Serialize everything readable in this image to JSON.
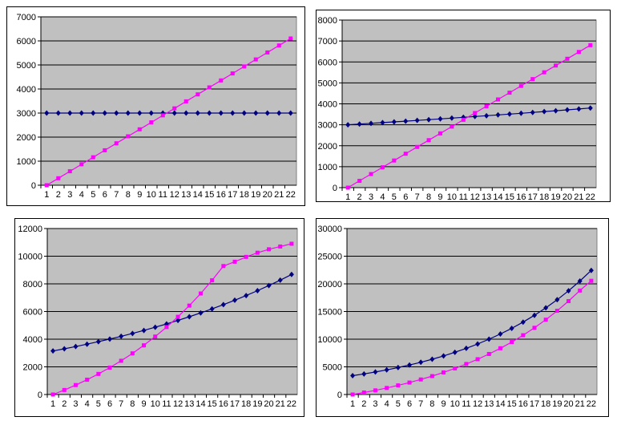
{
  "colors": {
    "plot_bg": "#c0c0c0",
    "series_a": "#000080",
    "series_b": "#ff00ff",
    "grid": "#000000"
  },
  "chart_data": [
    {
      "type": "line",
      "x": [
        1,
        2,
        3,
        4,
        5,
        6,
        7,
        8,
        9,
        10,
        11,
        12,
        13,
        14,
        15,
        16,
        17,
        18,
        19,
        20,
        21,
        22
      ],
      "ylim": [
        0,
        7000
      ],
      "yticks": [
        0,
        1000,
        2000,
        3000,
        4000,
        5000,
        6000,
        7000
      ],
      "grid": true,
      "series": [
        {
          "color": "#000080",
          "marker": "diamond",
          "values": [
            3000,
            3000,
            3000,
            3000,
            3000,
            3000,
            3000,
            3000,
            3000,
            3000,
            3000,
            3000,
            3000,
            3000,
            3000,
            3000,
            3000,
            3000,
            3000,
            3000,
            3000,
            3000
          ]
        },
        {
          "color": "#ff00ff",
          "marker": "square",
          "values": [
            0,
            290,
            581,
            871,
            1162,
            1452,
            1743,
            2033,
            2324,
            2614,
            2905,
            3195,
            3486,
            3776,
            4067,
            4357,
            4648,
            4938,
            5229,
            5519,
            5810,
            6100
          ]
        }
      ]
    },
    {
      "type": "line",
      "x": [
        1,
        2,
        3,
        4,
        5,
        6,
        7,
        8,
        9,
        10,
        11,
        12,
        13,
        14,
        15,
        16,
        17,
        18,
        19,
        20,
        21,
        22
      ],
      "ylim": [
        0,
        8000
      ],
      "yticks": [
        0,
        1000,
        2000,
        3000,
        4000,
        5000,
        6000,
        7000,
        8000
      ],
      "grid": true,
      "series": [
        {
          "color": "#000080",
          "marker": "diamond",
          "values": [
            3000,
            3034,
            3068,
            3103,
            3138,
            3173,
            3209,
            3245,
            3282,
            3319,
            3357,
            3395,
            3433,
            3472,
            3511,
            3550,
            3590,
            3631,
            3672,
            3713,
            3755,
            3800
          ]
        },
        {
          "color": "#ff00ff",
          "marker": "square",
          "values": [
            0,
            324,
            648,
            971,
            1295,
            1619,
            1943,
            2267,
            2590,
            2914,
            3238,
            3562,
            3886,
            4210,
            4533,
            4857,
            5181,
            5505,
            5829,
            6152,
            6476,
            6800
          ]
        }
      ]
    },
    {
      "type": "line",
      "x": [
        1,
        2,
        3,
        4,
        5,
        6,
        7,
        8,
        9,
        10,
        11,
        12,
        13,
        14,
        15,
        16,
        17,
        18,
        19,
        20,
        21,
        22
      ],
      "ylim": [
        0,
        12000
      ],
      "yticks": [
        0,
        2000,
        4000,
        6000,
        8000,
        10000,
        12000
      ],
      "grid": true,
      "series": [
        {
          "color": "#000080",
          "marker": "diamond",
          "values": [
            3150,
            3306,
            3469,
            3641,
            3821,
            4010,
            4208,
            4416,
            4634,
            4863,
            5104,
            5356,
            5621,
            5899,
            6190,
            6497,
            6818,
            7155,
            7508,
            7880,
            8269,
            8678
          ]
        },
        {
          "color": "#ff00ff",
          "marker": "square",
          "values": [
            0,
            327,
            683,
            1069,
            1489,
            1944,
            2438,
            2975,
            3557,
            4189,
            4875,
            5619,
            6427,
            7303,
            8255,
            9288,
            9600,
            9950,
            10250,
            10500,
            10700,
            10900
          ]
        }
      ]
    },
    {
      "type": "line",
      "x": [
        1,
        2,
        3,
        4,
        5,
        6,
        7,
        8,
        9,
        10,
        11,
        12,
        13,
        14,
        15,
        16,
        17,
        18,
        19,
        20,
        21,
        22
      ],
      "ylim": [
        0,
        30000
      ],
      "yticks": [
        0,
        5000,
        10000,
        15000,
        20000,
        25000,
        30000
      ],
      "grid": true,
      "series": [
        {
          "color": "#000080",
          "marker": "diamond",
          "values": [
            3400,
            3720,
            4070,
            4452,
            4871,
            5329,
            5830,
            6378,
            6978,
            7634,
            8351,
            9137,
            9995,
            10935,
            11962,
            13087,
            14317,
            15663,
            17135,
            18746,
            20508,
            22436
          ]
        },
        {
          "color": "#ff00ff",
          "marker": "square",
          "values": [
            0,
            360,
            753,
            1182,
            1650,
            2161,
            2719,
            3328,
            3993,
            4720,
            5513,
            6379,
            7325,
            8358,
            9485,
            10716,
            12060,
            13528,
            15131,
            16880,
            18791,
            20550
          ]
        }
      ]
    }
  ]
}
